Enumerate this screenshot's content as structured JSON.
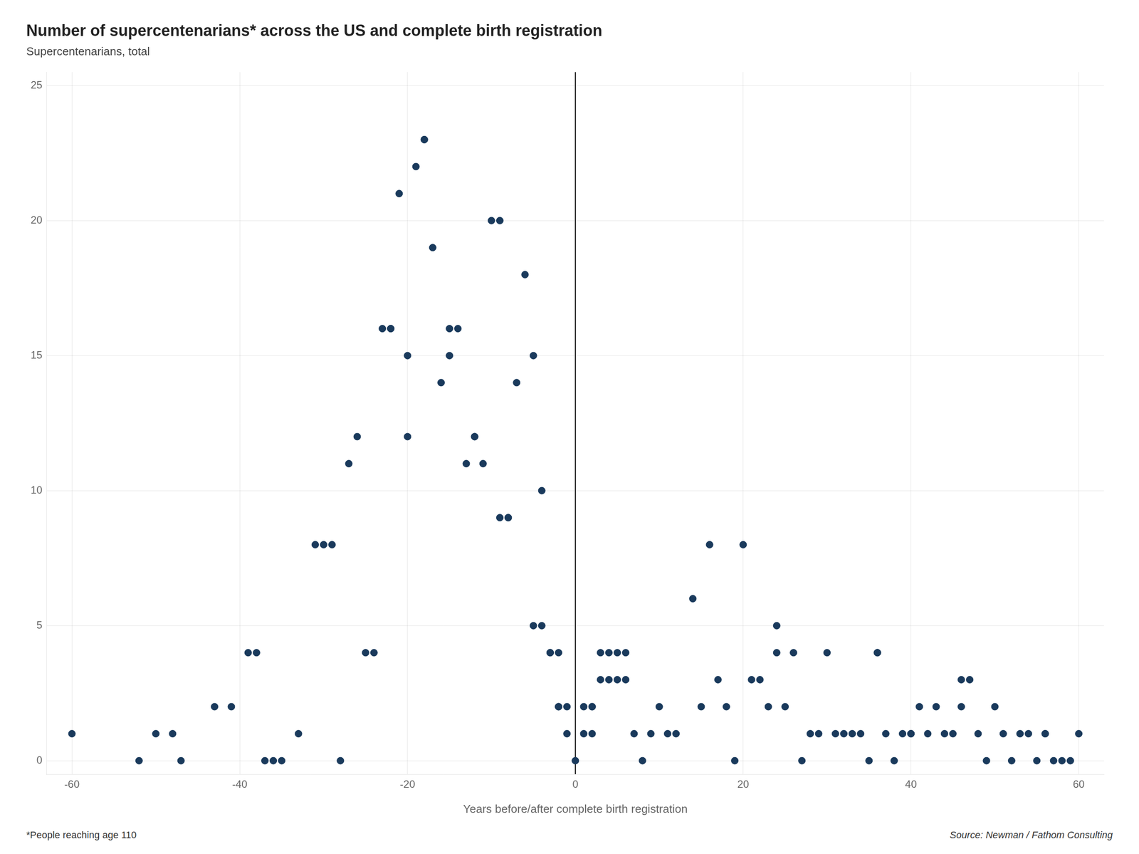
{
  "chart_data": {
    "type": "scatter",
    "title": "Number of supercentenarians* across the US and complete birth registration",
    "subtitle": "Supercentenarians, total",
    "xlabel": "Years before/after complete birth registration",
    "footnote": "*People reaching age 110",
    "source": "Source: Newman / Fathom Consulting",
    "color": "#1a3a5c",
    "grid": true,
    "xlim": [
      -63,
      63
    ],
    "ylim": [
      -0.5,
      25.5
    ],
    "xticks": [
      -60,
      -40,
      -20,
      0,
      20,
      40,
      60
    ],
    "yticks": [
      0,
      5,
      10,
      15,
      20,
      25
    ],
    "vline": {
      "x": 0,
      "color": "#000000"
    },
    "x": [
      -60,
      -52,
      -50,
      -48,
      -47,
      -43,
      -41,
      -39,
      -38,
      -37,
      -36,
      -35,
      -33,
      -31,
      -30,
      -29,
      -28,
      -27,
      -26,
      -25,
      -24,
      -23,
      -22,
      -22,
      -21,
      -20,
      -20,
      -19,
      -18,
      -18,
      -17,
      -16,
      -15,
      -15,
      -14,
      -13,
      -12,
      -12,
      -11,
      -10,
      -9,
      -9,
      -8,
      -8,
      -7,
      -6,
      -5,
      -5,
      -4,
      -4,
      -3,
      -3,
      -2,
      -2,
      -2,
      -1,
      -1,
      0,
      1,
      1,
      2,
      2,
      2,
      3,
      3,
      4,
      4,
      5,
      5,
      6,
      6,
      7,
      8,
      9,
      10,
      11,
      12,
      14,
      15,
      16,
      17,
      18,
      19,
      20,
      21,
      22,
      23,
      24,
      24,
      25,
      26,
      27,
      28,
      29,
      30,
      31,
      32,
      33,
      34,
      35,
      36,
      36,
      37,
      38,
      39,
      40,
      40,
      41,
      42,
      43,
      44,
      45,
      46,
      46,
      47,
      48,
      49,
      50,
      51,
      52,
      53,
      54,
      55,
      56,
      56,
      57,
      58,
      59,
      60
    ],
    "values": [
      1,
      0,
      1,
      1,
      0,
      2,
      2,
      4,
      4,
      0,
      0,
      0,
      1,
      8,
      8,
      8,
      0,
      11,
      12,
      4,
      4,
      16,
      16,
      16,
      21,
      12,
      15,
      22,
      23,
      23,
      19,
      14,
      15,
      16,
      16,
      11,
      12,
      12,
      11,
      20,
      20,
      9,
      9,
      9,
      14,
      18,
      15,
      5,
      5,
      10,
      4,
      4,
      4,
      2,
      2,
      1,
      2,
      0,
      1,
      2,
      2,
      2,
      1,
      4,
      3,
      4,
      3,
      4,
      3,
      4,
      3,
      1,
      0,
      1,
      2,
      1,
      1,
      6,
      2,
      8,
      3,
      2,
      0,
      8,
      3,
      3,
      2,
      5,
      4,
      2,
      4,
      0,
      1,
      1,
      4,
      1,
      1,
      1,
      1,
      0,
      4,
      4,
      1,
      0,
      1,
      1,
      1,
      2,
      1,
      2,
      1,
      1,
      3,
      2,
      3,
      1,
      0,
      2,
      1,
      0,
      1,
      1,
      0,
      1,
      1,
      0,
      0,
      0,
      1
    ]
  }
}
